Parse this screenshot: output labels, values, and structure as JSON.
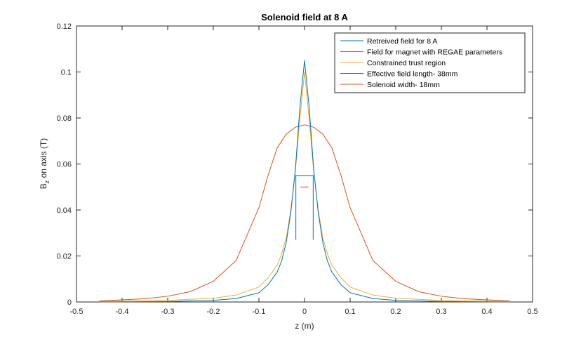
{
  "window": {
    "background": "#ffffff"
  },
  "chart_data": {
    "type": "line",
    "title": "Solenoid field at 8 A",
    "xlabel": "z (m)",
    "ylabel": {
      "main": "B",
      "sub": "z",
      "rest": " on axis (T)"
    },
    "xlim": [
      -0.5,
      0.5
    ],
    "ylim": [
      0,
      0.12
    ],
    "xticks": [
      -0.5,
      -0.4,
      -0.3,
      -0.2,
      -0.1,
      0,
      0.1,
      0.2,
      0.3,
      0.4,
      0.5
    ],
    "xtick_labels": [
      "-0.5",
      "-0.4",
      "-0.3",
      "-0.2",
      "-0.1",
      "0",
      "0.1",
      "0.2",
      "0.3",
      "0.4",
      "0.5"
    ],
    "yticks": [
      0,
      0.02,
      0.04,
      0.06,
      0.08,
      0.1,
      0.12
    ],
    "ytick_labels": [
      "0",
      "0.02",
      "0.04",
      "0.06",
      "0.08",
      "0.1",
      "0.12"
    ],
    "grid": false,
    "legend_position": "top-right",
    "series": [
      {
        "name": "Retreived field for 8 A",
        "color": "#0072bd",
        "kind": "line",
        "x": [
          -0.45,
          -0.3,
          -0.2,
          -0.15,
          -0.1,
          -0.08,
          -0.06,
          -0.05,
          -0.04,
          -0.03,
          -0.02,
          -0.01,
          0,
          0.01,
          0.02,
          0.03,
          0.04,
          0.05,
          0.06,
          0.08,
          0.1,
          0.15,
          0.2,
          0.3,
          0.45
        ],
        "y": [
          0.0,
          0.0002,
          0.0007,
          0.0015,
          0.004,
          0.0075,
          0.013,
          0.018,
          0.026,
          0.039,
          0.058,
          0.085,
          0.105,
          0.085,
          0.058,
          0.039,
          0.026,
          0.018,
          0.013,
          0.0075,
          0.004,
          0.0015,
          0.0007,
          0.0002,
          0.0
        ]
      },
      {
        "name": "Field for magnet with REGAE parameters",
        "color": "#d95319",
        "kind": "line",
        "x": [
          -0.45,
          -0.4,
          -0.35,
          -0.3,
          -0.25,
          -0.2,
          -0.15,
          -0.1,
          -0.08,
          -0.06,
          -0.04,
          -0.02,
          0,
          0.02,
          0.04,
          0.06,
          0.08,
          0.1,
          0.15,
          0.2,
          0.25,
          0.3,
          0.35,
          0.4,
          0.45
        ],
        "y": [
          0.0005,
          0.0009,
          0.0014,
          0.0025,
          0.0045,
          0.009,
          0.018,
          0.041,
          0.055,
          0.067,
          0.073,
          0.076,
          0.077,
          0.076,
          0.073,
          0.067,
          0.055,
          0.041,
          0.018,
          0.009,
          0.0045,
          0.0025,
          0.0014,
          0.0009,
          0.0005
        ]
      },
      {
        "name": "Constrained trust region",
        "color": "#edb120",
        "kind": "line",
        "x": [
          -0.45,
          -0.3,
          -0.2,
          -0.15,
          -0.1,
          -0.08,
          -0.06,
          -0.05,
          -0.04,
          -0.03,
          -0.02,
          -0.01,
          0,
          0.01,
          0.02,
          0.03,
          0.04,
          0.05,
          0.06,
          0.08,
          0.1,
          0.15,
          0.2,
          0.3,
          0.45
        ],
        "y": [
          0.0003,
          0.0007,
          0.0016,
          0.003,
          0.0065,
          0.0105,
          0.016,
          0.021,
          0.028,
          0.04,
          0.057,
          0.08,
          0.1,
          0.08,
          0.057,
          0.04,
          0.028,
          0.021,
          0.016,
          0.0105,
          0.0065,
          0.003,
          0.0016,
          0.0007,
          0.0003
        ]
      },
      {
        "name": "Effective field length- 38mm",
        "color": "#0072bd",
        "kind": "bracket",
        "x": [
          -0.019,
          -0.019,
          0.019,
          0.019
        ],
        "y": [
          0.027,
          0.055,
          0.055,
          0.027
        ]
      },
      {
        "name": "Solenoid width- 18mm",
        "color": "#d95319",
        "kind": "line",
        "x": [
          -0.009,
          0.009
        ],
        "y": [
          0.05,
          0.05
        ]
      }
    ]
  }
}
